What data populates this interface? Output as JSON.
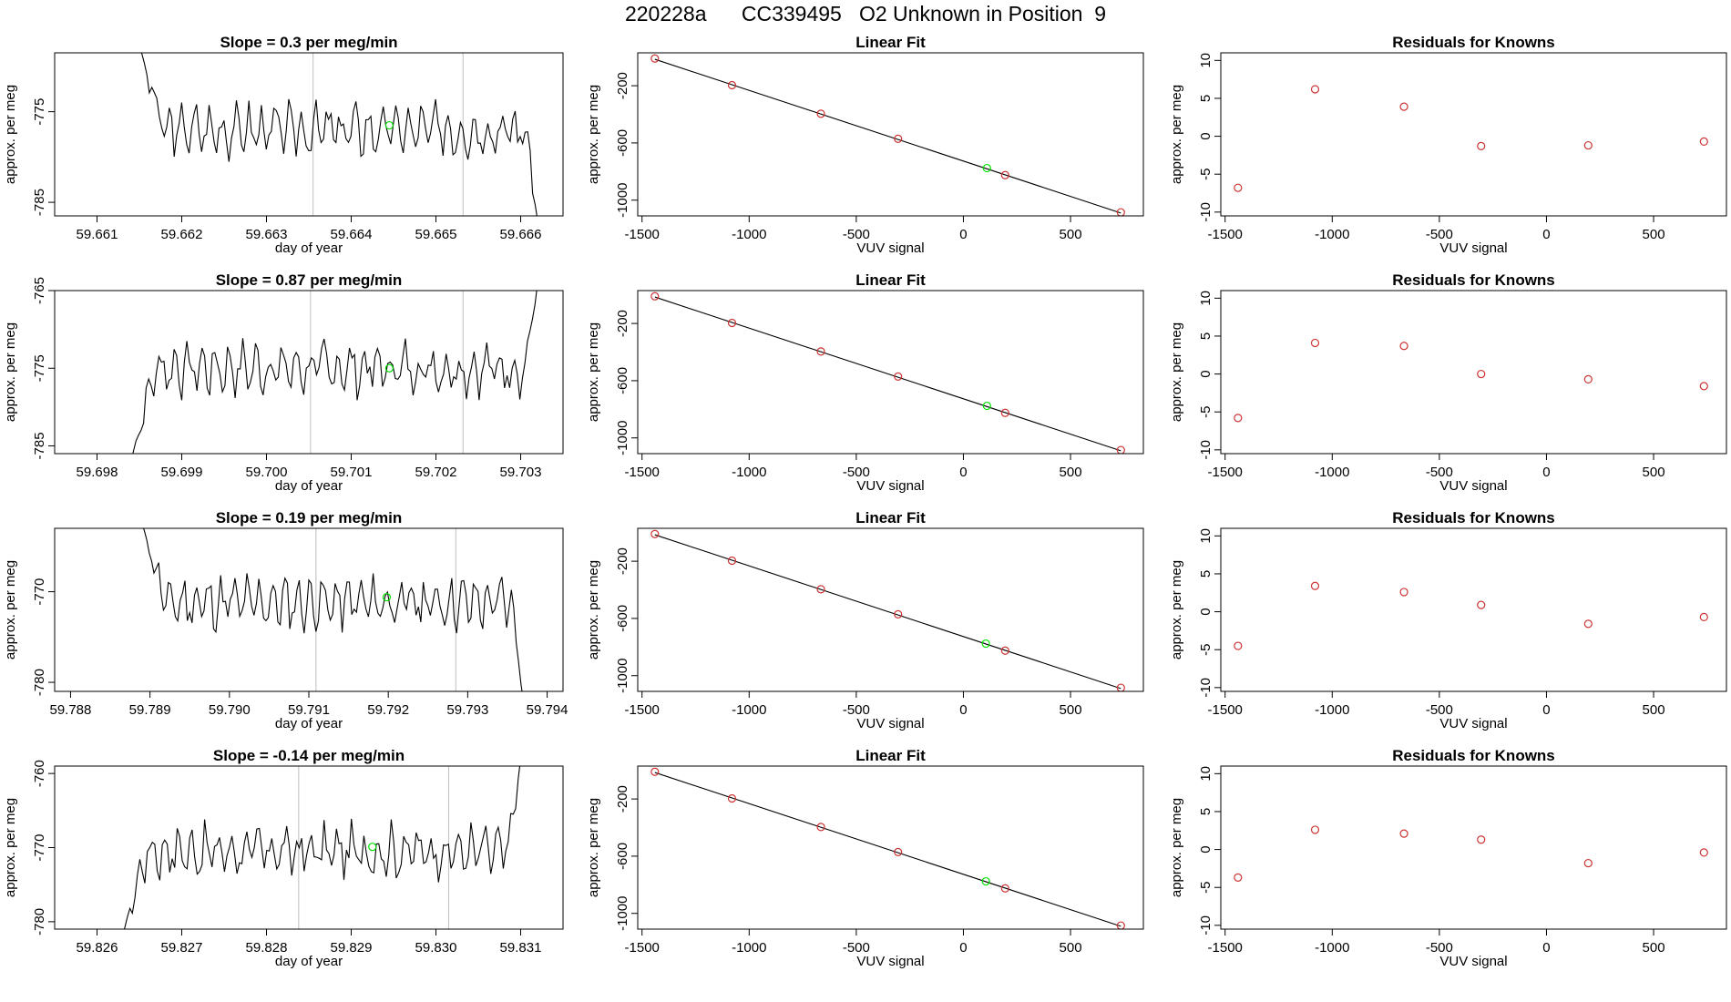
{
  "title": "220228a      CC339495   O2 Unknown in Position  9",
  "colors": {
    "trace": "#000000",
    "known_point": "#cd3333",
    "unknown_point": "#00e000",
    "vline": "#bebebe",
    "frame": "#000000"
  },
  "chart_data": [
    {
      "type": "line",
      "panel": "timeseries",
      "row": 1,
      "title": "Slope =  0.3  per meg/min",
      "xlabel": "day of year",
      "ylabel": "approx. per meg",
      "xlim": [
        59.6605,
        59.6665
      ],
      "ylim": [
        -786.5,
        -768.5
      ],
      "xticks": [
        59.661,
        59.662,
        59.663,
        59.664,
        59.665,
        59.666
      ],
      "xtick_labels": [
        "59.661",
        "59.662",
        "59.663",
        "59.664",
        "59.665",
        "59.666"
      ],
      "yticks": [
        -785,
        -775
      ],
      "ytick_labels": [
        "-785",
        "-775"
      ],
      "vlines": [
        59.66355,
        59.66532
      ],
      "trace": {
        "x_start": 59.6615,
        "x_end": 59.6662,
        "level": -777.0,
        "amp": 2.0,
        "start_value": -768.0,
        "end_value": -787.0,
        "cycles": 30,
        "seed": 3
      },
      "unknown_point": {
        "x": 59.66445,
        "y": -776.5
      }
    },
    {
      "type": "scatter",
      "panel": "linear_fit",
      "row": 1,
      "title": "Linear Fit",
      "xlabel": "VUV signal",
      "ylabel": "approx. per meg",
      "xlim": [
        -1520,
        840
      ],
      "ylim": [
        -1110,
        30
      ],
      "xticks": [
        -1500,
        -1000,
        -500,
        0,
        500
      ],
      "xtick_labels": [
        "-1500",
        "-1000",
        "-500",
        "0",
        "500"
      ],
      "yticks": [
        -1000,
        -600,
        -200
      ],
      "ytick_labels": [
        "-1000",
        "-600",
        "-200"
      ],
      "knowns": [
        [
          -1440,
          -10
        ],
        [
          -1080,
          -196
        ],
        [
          -665,
          -396
        ],
        [
          -305,
          -571
        ],
        [
          195,
          -825
        ],
        [
          735,
          -1085
        ]
      ],
      "unknown_point": [
        110,
        -776
      ],
      "fit_line": [
        [
          -1440,
          -15
        ],
        [
          735,
          -1090
        ]
      ]
    },
    {
      "type": "scatter",
      "panel": "residuals",
      "row": 1,
      "title": "Residuals for Knowns",
      "xlabel": "VUV signal",
      "ylabel": "approx. per meg",
      "xlim": [
        -1520,
        840
      ],
      "ylim": [
        -10.5,
        11
      ],
      "xticks": [
        -1500,
        -1000,
        -500,
        0,
        500
      ],
      "xtick_labels": [
        "-1500",
        "-1000",
        "-500",
        "0",
        "500"
      ],
      "yticks": [
        -10,
        -5,
        0,
        5,
        10
      ],
      "ytick_labels": [
        "-10",
        "-5",
        "0",
        "5",
        "10"
      ],
      "points": [
        [
          -1440,
          -6.8
        ],
        [
          -1080,
          6.2
        ],
        [
          -665,
          3.9
        ],
        [
          -305,
          -1.3
        ],
        [
          195,
          -1.2
        ],
        [
          735,
          -0.7
        ]
      ]
    },
    {
      "type": "line",
      "panel": "timeseries",
      "row": 2,
      "title": "Slope =  0.87  per meg/min",
      "xlabel": "day of year",
      "ylabel": "approx. per meg",
      "xlim": [
        59.6975,
        59.7035
      ],
      "ylim": [
        -786,
        -765
      ],
      "xticks": [
        59.698,
        59.699,
        59.7,
        59.701,
        59.702,
        59.703
      ],
      "xtick_labels": [
        "59.698",
        "59.699",
        "59.700",
        "59.701",
        "59.702",
        "59.703"
      ],
      "yticks": [
        -785,
        -775,
        -765
      ],
      "ytick_labels": [
        "-785",
        "-775",
        "-765"
      ],
      "vlines": [
        59.70052,
        59.70232
      ],
      "trace": {
        "x_start": 59.6984,
        "x_end": 59.7032,
        "level": -775.0,
        "amp": 2.4,
        "start_value": -787.0,
        "end_value": -764.0,
        "cycles": 30,
        "seed": 7
      },
      "unknown_point": {
        "x": 59.70145,
        "y": -775.0
      }
    },
    {
      "type": "scatter",
      "panel": "linear_fit",
      "row": 2,
      "title": "Linear Fit",
      "xlabel": "VUV signal",
      "ylabel": "approx. per meg",
      "xlim": [
        -1520,
        840
      ],
      "ylim": [
        -1110,
        30
      ],
      "xticks": [
        -1500,
        -1000,
        -500,
        0,
        500
      ],
      "xtick_labels": [
        "-1500",
        "-1000",
        "-500",
        "0",
        "500"
      ],
      "yticks": [
        -1000,
        -600,
        -200
      ],
      "ytick_labels": [
        "-1000",
        "-600",
        "-200"
      ],
      "knowns": [
        [
          -1440,
          -10
        ],
        [
          -1080,
          -196
        ],
        [
          -665,
          -396
        ],
        [
          -305,
          -571
        ],
        [
          195,
          -825
        ],
        [
          735,
          -1085
        ]
      ],
      "unknown_point": [
        110,
        -776
      ],
      "fit_line": [
        [
          -1440,
          -15
        ],
        [
          735,
          -1090
        ]
      ]
    },
    {
      "type": "scatter",
      "panel": "residuals",
      "row": 2,
      "title": "Residuals for Knowns",
      "xlabel": "VUV signal",
      "ylabel": "approx. per meg",
      "xlim": [
        -1520,
        840
      ],
      "ylim": [
        -10.5,
        11
      ],
      "xticks": [
        -1500,
        -1000,
        -500,
        0,
        500
      ],
      "xtick_labels": [
        "-1500",
        "-1000",
        "-500",
        "0",
        "500"
      ],
      "yticks": [
        -10,
        -5,
        0,
        5,
        10
      ],
      "ytick_labels": [
        "-10",
        "-5",
        "0",
        "5",
        "10"
      ],
      "points": [
        [
          -1440,
          -5.8
        ],
        [
          -1080,
          4.1
        ],
        [
          -665,
          3.7
        ],
        [
          -305,
          0.0
        ],
        [
          195,
          -0.7
        ],
        [
          735,
          -1.6
        ]
      ]
    },
    {
      "type": "line",
      "panel": "timeseries",
      "row": 3,
      "title": "Slope =  0.19  per meg/min",
      "xlabel": "day of year",
      "ylabel": "approx. per meg",
      "xlim": [
        59.7878,
        59.7942
      ],
      "ylim": [
        -781,
        -763
      ],
      "xticks": [
        59.788,
        59.789,
        59.79,
        59.791,
        59.792,
        59.793,
        59.794
      ],
      "xtick_labels": [
        "59.788",
        "59.789",
        "59.790",
        "59.791",
        "59.792",
        "59.793",
        "59.794"
      ],
      "yticks": [
        -780,
        -770
      ],
      "ytick_labels": [
        "-780",
        "-770"
      ],
      "vlines": [
        59.79109,
        59.79285
      ],
      "trace": {
        "x_start": 59.7889,
        "x_end": 59.7937,
        "level": -771.2,
        "amp": 2.0,
        "start_value": -762.5,
        "end_value": -782.0,
        "cycles": 30,
        "seed": 11
      },
      "unknown_point": {
        "x": 59.79198,
        "y": -770.6
      }
    },
    {
      "type": "scatter",
      "panel": "linear_fit",
      "row": 3,
      "title": "Linear Fit",
      "xlabel": "VUV signal",
      "ylabel": "approx. per meg",
      "xlim": [
        -1520,
        840
      ],
      "ylim": [
        -1110,
        30
      ],
      "xticks": [
        -1500,
        -1000,
        -500,
        0,
        500
      ],
      "xtick_labels": [
        "-1500",
        "-1000",
        "-500",
        "0",
        "500"
      ],
      "yticks": [
        -1000,
        -600,
        -200
      ],
      "ytick_labels": [
        "-1000",
        "-600",
        "-200"
      ],
      "knowns": [
        [
          -1440,
          -10
        ],
        [
          -1080,
          -196
        ],
        [
          -665,
          -396
        ],
        [
          -305,
          -571
        ],
        [
          195,
          -825
        ],
        [
          735,
          -1085
        ]
      ],
      "unknown_point": [
        105,
        -776
      ],
      "fit_line": [
        [
          -1440,
          -15
        ],
        [
          735,
          -1090
        ]
      ]
    },
    {
      "type": "scatter",
      "panel": "residuals",
      "row": 3,
      "title": "Residuals for Knowns",
      "xlabel": "VUV signal",
      "ylabel": "approx. per meg",
      "xlim": [
        -1520,
        840
      ],
      "ylim": [
        -10.5,
        11
      ],
      "xticks": [
        -1500,
        -1000,
        -500,
        0,
        500
      ],
      "xtick_labels": [
        "-1500",
        "-1000",
        "-500",
        "0",
        "500"
      ],
      "yticks": [
        -10,
        -5,
        0,
        5,
        10
      ],
      "ytick_labels": [
        "-10",
        "-5",
        "0",
        "5",
        "10"
      ],
      "points": [
        [
          -1440,
          -4.5
        ],
        [
          -1080,
          3.4
        ],
        [
          -665,
          2.6
        ],
        [
          -305,
          0.9
        ],
        [
          195,
          -1.6
        ],
        [
          735,
          -0.7
        ]
      ]
    },
    {
      "type": "line",
      "panel": "timeseries",
      "row": 4,
      "title": "Slope =  -0.14  per meg/min",
      "xlabel": "day of year",
      "ylabel": "approx. per meg",
      "xlim": [
        59.8255,
        59.8315
      ],
      "ylim": [
        -781,
        -759
      ],
      "xticks": [
        59.826,
        59.827,
        59.828,
        59.829,
        59.83,
        59.831
      ],
      "xtick_labels": [
        "59.826",
        "59.827",
        "59.828",
        "59.829",
        "59.830",
        "59.831"
      ],
      "yticks": [
        -780,
        -770,
        -760
      ],
      "ytick_labels": [
        "-780",
        "-770",
        "-760"
      ],
      "vlines": [
        59.82838,
        59.83015
      ],
      "trace": {
        "x_start": 59.8263,
        "x_end": 59.831,
        "level": -770.5,
        "amp": 2.5,
        "start_value": -782.0,
        "end_value": -758.0,
        "cycles": 30,
        "seed": 17
      },
      "unknown_point": {
        "x": 59.82925,
        "y": -769.9
      }
    },
    {
      "type": "scatter",
      "panel": "linear_fit",
      "row": 4,
      "title": "Linear Fit",
      "xlabel": "VUV signal",
      "ylabel": "approx. per meg",
      "xlim": [
        -1520,
        840
      ],
      "ylim": [
        -1110,
        30
      ],
      "xticks": [
        -1500,
        -1000,
        -500,
        0,
        500
      ],
      "xtick_labels": [
        "-1500",
        "-1000",
        "-500",
        "0",
        "500"
      ],
      "yticks": [
        -1000,
        -600,
        -200
      ],
      "ytick_labels": [
        "-1000",
        "-600",
        "-200"
      ],
      "knowns": [
        [
          -1440,
          -10
        ],
        [
          -1080,
          -196
        ],
        [
          -665,
          -396
        ],
        [
          -305,
          -571
        ],
        [
          195,
          -825
        ],
        [
          735,
          -1085
        ]
      ],
      "unknown_point": [
        105,
        -776
      ],
      "fit_line": [
        [
          -1440,
          -15
        ],
        [
          735,
          -1090
        ]
      ]
    },
    {
      "type": "scatter",
      "panel": "residuals",
      "row": 4,
      "title": "Residuals for Knowns",
      "xlabel": "VUV signal",
      "ylabel": "approx. per meg",
      "xlim": [
        -1520,
        840
      ],
      "ylim": [
        -10.5,
        11
      ],
      "xticks": [
        -1500,
        -1000,
        -500,
        0,
        500
      ],
      "xtick_labels": [
        "-1500",
        "-1000",
        "-500",
        "0",
        "500"
      ],
      "yticks": [
        -10,
        -5,
        0,
        5,
        10
      ],
      "ytick_labels": [
        "-10",
        "-5",
        "0",
        "5",
        "10"
      ],
      "points": [
        [
          -1440,
          -3.7
        ],
        [
          -1080,
          2.6
        ],
        [
          -665,
          2.1
        ],
        [
          -305,
          1.3
        ],
        [
          195,
          -1.8
        ],
        [
          735,
          -0.4
        ]
      ]
    }
  ]
}
